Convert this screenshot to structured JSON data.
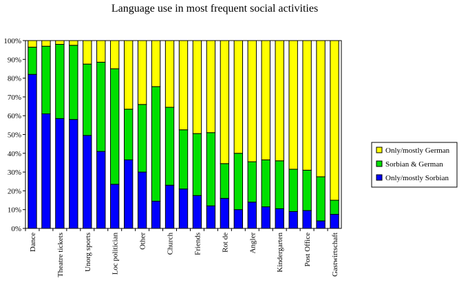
{
  "chart_data": {
    "type": "bar",
    "stacked": true,
    "percent": true,
    "title": "Language use in most frequent social activities",
    "xlabel": "",
    "ylabel": "",
    "ylim": [
      0,
      100
    ],
    "yticks": [
      "0%",
      "10%",
      "20%",
      "30%",
      "40%",
      "50%",
      "60%",
      "70%",
      "80%",
      "90%",
      "100%"
    ],
    "categories": [
      "Dance",
      "",
      "Theatre tickets",
      "",
      "Unorg sports",
      "",
      "Loc politician",
      "",
      "Other",
      "",
      "Church",
      "",
      "Friends",
      "",
      "Rot de",
      "",
      "Angler",
      "",
      "Kindergarten",
      "",
      "Post Office",
      "",
      "Gastwirtschaft"
    ],
    "legend_position": "right",
    "series": [
      {
        "name": "Only/mostly Sorbian",
        "color": "#0000ff",
        "values": [
          82,
          61,
          58.5,
          58,
          49.5,
          41,
          23.5,
          36.5,
          30,
          14.5,
          23,
          21,
          17.5,
          12,
          16,
          10,
          14,
          11.5,
          10.5,
          9,
          9.5,
          4,
          7.5
        ]
      },
      {
        "name": "Sorbian & German",
        "color": "#00e000",
        "values": [
          14.5,
          36,
          39.5,
          39.5,
          38,
          47.5,
          61.5,
          27,
          36,
          61,
          41.5,
          31.5,
          33,
          39,
          18.5,
          30,
          21.5,
          25,
          25.5,
          22.5,
          21.5,
          23.5,
          7.5
        ]
      },
      {
        "name": "Only/mostly German",
        "color": "#ffff00",
        "values": [
          3.5,
          3,
          2,
          2.5,
          12.5,
          11.5,
          15,
          36.5,
          34,
          24.5,
          35.5,
          47.5,
          49.5,
          49,
          65.5,
          60,
          64.5,
          63.5,
          64,
          68.5,
          69,
          72.5,
          85
        ]
      }
    ],
    "legend_order": [
      "Only/mostly German",
      "Sorbian & German",
      "Only/mostly Sorbian"
    ]
  }
}
